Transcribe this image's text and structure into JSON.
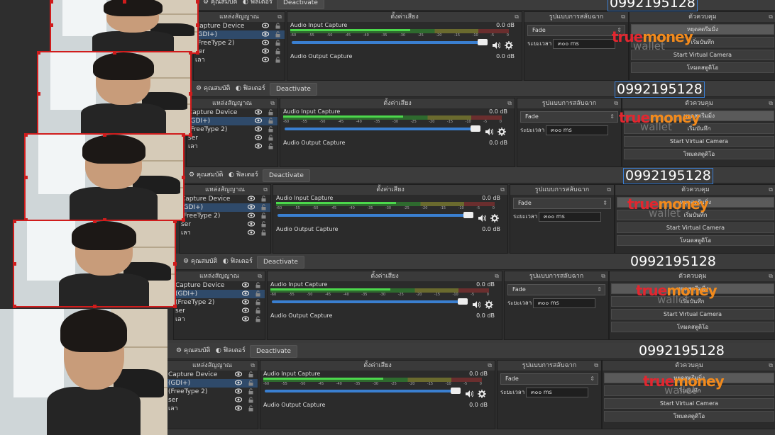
{
  "toolbar": {
    "properties_label": "คุณสมบัติ",
    "filters_label": "ฟิลเตอร์",
    "deactivate_label": "Deactivate"
  },
  "phone_number": "0992195128",
  "docks": {
    "sources_title": "แหล่งสัญญาณ",
    "mixer_title": "ตั้งค่าเสียง",
    "transitions_title": "รูปแบบการสลับฉาก",
    "controls_title": "ตัวควบคุม"
  },
  "sources": [
    {
      "label": "Capture Device"
    },
    {
      "label": "(GDI+)"
    },
    {
      "label": "(FreeType 2)"
    },
    {
      "label": "ser"
    },
    {
      "label": "เลา"
    }
  ],
  "mixer": {
    "input_name": "Audio Input Capture",
    "input_db": "0.0 dB",
    "output_name": "Audio Output Capture",
    "output_db": "0.0 dB",
    "ticks": [
      "-60",
      "-55",
      "-50",
      "-45",
      "-40",
      "-35",
      "-30",
      "-25",
      "-20",
      "-15",
      "-10",
      "-5",
      "0"
    ],
    "input_level": 0.55
  },
  "transitions": {
    "selected": "Fade",
    "duration_label": "ระยะเวลา",
    "duration_value": "๓๐๐ ms"
  },
  "controls": {
    "stop_stream": "หยุดสตรีมมิ่ง",
    "start_record": "เริ่มบันทึก",
    "virtual_camera": "Start Virtual Camera",
    "studio_mode": "โหมดสตูดิโอ"
  },
  "logo": {
    "true_text": "true",
    "money_text": "money",
    "wallet_text": "wallet"
  },
  "colors": {
    "accent_blue": "#3a7fd0",
    "selection_red": "#d01c1c",
    "meter_green": "#4cd84c",
    "brand_red": "#e2262f",
    "brand_orange": "#f28a1c"
  }
}
